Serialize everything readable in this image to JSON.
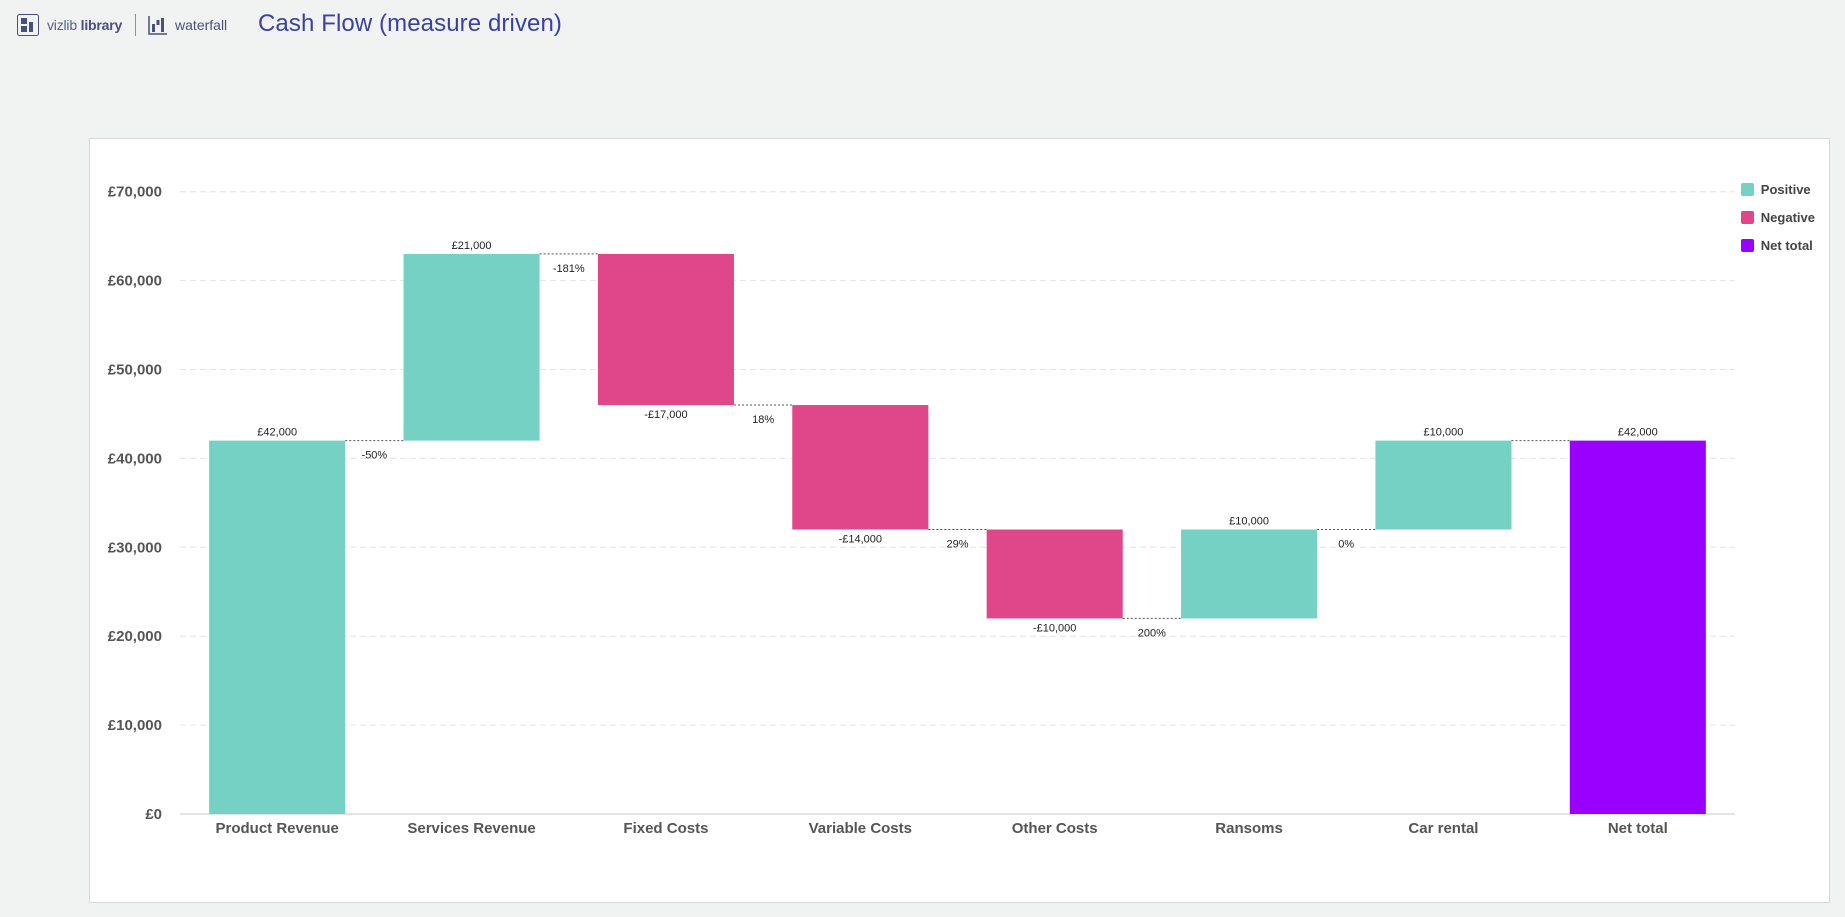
{
  "header": {
    "brand_light": "vizlib",
    "brand_bold": "library",
    "extension_name": "waterfall",
    "title": "Cash Flow (measure driven)"
  },
  "colors": {
    "positive": "#75d1c4",
    "negative": "#e0478a",
    "total": "#9900ff",
    "accent": "#3b40a3"
  },
  "legend": [
    {
      "label": "Positive",
      "color": "#75d1c4"
    },
    {
      "label": "Negative",
      "color": "#e0478a"
    },
    {
      "label": "Net total",
      "color": "#9900ff"
    }
  ],
  "chart_data": {
    "type": "bar",
    "subtype": "waterfall",
    "categories": [
      "Product Revenue",
      "Services Revenue",
      "Fixed Costs",
      "Variable Costs",
      "Other Costs",
      "Ransoms",
      "Car rental",
      "Net total"
    ],
    "values": [
      42000,
      21000,
      -17000,
      -14000,
      -10000,
      10000,
      10000,
      42000
    ],
    "kinds": [
      "positive",
      "positive",
      "negative",
      "negative",
      "negative",
      "positive",
      "positive",
      "total"
    ],
    "value_labels": [
      "£42,000",
      "£21,000",
      "-£17,000",
      "-£14,000",
      "-£10,000",
      "£10,000",
      "£10,000",
      "£42,000"
    ],
    "change_labels": [
      "-50%",
      "-181%",
      "18%",
      "29%",
      "200%",
      "0%",
      "",
      ""
    ],
    "y_ticks": [
      0,
      10000,
      20000,
      30000,
      40000,
      50000,
      60000,
      70000
    ],
    "y_tick_labels": [
      "£0",
      "£10,000",
      "£20,000",
      "£30,000",
      "£40,000",
      "£50,000",
      "£60,000",
      "£70,000"
    ],
    "ylim": [
      0,
      70000
    ],
    "grid": true,
    "legend_position": "top-right",
    "title": "",
    "xlabel": "",
    "ylabel": ""
  }
}
